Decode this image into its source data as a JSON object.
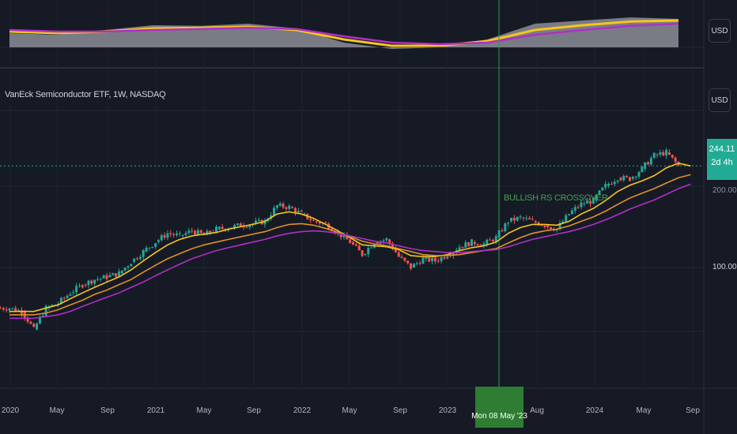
{
  "chart_data": [
    {
      "type": "area",
      "panel": "relative-strength",
      "axis_currency": "USD",
      "x": [
        "2020-01",
        "2020-05",
        "2020-09",
        "2021-01",
        "2021-05",
        "2021-09",
        "2022-01",
        "2022-05",
        "2022-09",
        "2023-01",
        "2023-05",
        "2023-08",
        "2024-01",
        "2024-05",
        "2024-08"
      ],
      "series": [
        {
          "color": "#b2b5be",
          "values": [
            0.45,
            0.4,
            0.55,
            0.7,
            0.68,
            0.75,
            0.6,
            0.15,
            -0.05,
            0.0,
            0.25,
            0.75,
            0.85,
            0.95,
            0.9
          ]
        },
        {
          "color": "#f7c51e",
          "values": [
            0.5,
            0.45,
            0.5,
            0.6,
            0.62,
            0.65,
            0.55,
            0.25,
            0.05,
            0.05,
            0.2,
            0.55,
            0.7,
            0.82,
            0.85
          ]
        },
        {
          "color": "#b02fc6",
          "values": [
            0.55,
            0.5,
            0.5,
            0.55,
            0.58,
            0.62,
            0.58,
            0.35,
            0.15,
            0.1,
            0.15,
            0.4,
            0.55,
            0.68,
            0.75
          ]
        }
      ]
    },
    {
      "type": "candlestick",
      "panel": "price",
      "title": "VanEck Semiconductor ETF, 1W, NASDAQ",
      "axis_currency": "USD",
      "x_ticks": [
        "2020",
        "May",
        "Sep",
        "2021",
        "May",
        "Sep",
        "2022",
        "May",
        "Sep",
        "2023",
        "Mon 08 May '23",
        "Aug",
        "2024",
        "May",
        "Sep"
      ],
      "y_ticks": [
        "100.00"
      ],
      "yaxis_partial_label": "200.00",
      "y_scale": "log",
      "last_price": "244.11",
      "countdown": "2d 4h",
      "annotation": "BULLISH RS CROSSOVER",
      "crosshair_date": "Mon 08 May '23",
      "closes": [
        {
          "date": "2020-01",
          "close": 70
        },
        {
          "date": "2020-02",
          "close": 68
        },
        {
          "date": "2020-03",
          "close": 58
        },
        {
          "date": "2020-04",
          "close": 70
        },
        {
          "date": "2020-05",
          "close": 73
        },
        {
          "date": "2020-06",
          "close": 80
        },
        {
          "date": "2020-07",
          "close": 86
        },
        {
          "date": "2020-08",
          "close": 90
        },
        {
          "date": "2020-09",
          "close": 92
        },
        {
          "date": "2020-10",
          "close": 95
        },
        {
          "date": "2020-11",
          "close": 105
        },
        {
          "date": "2020-12",
          "close": 115
        },
        {
          "date": "2021-01",
          "close": 125
        },
        {
          "date": "2021-02",
          "close": 135
        },
        {
          "date": "2021-03",
          "close": 132
        },
        {
          "date": "2021-04",
          "close": 138
        },
        {
          "date": "2021-05",
          "close": 133
        },
        {
          "date": "2021-06",
          "close": 140
        },
        {
          "date": "2021-07",
          "close": 142
        },
        {
          "date": "2021-08",
          "close": 145
        },
        {
          "date": "2021-09",
          "close": 147
        },
        {
          "date": "2021-10",
          "close": 150
        },
        {
          "date": "2021-11",
          "close": 172
        },
        {
          "date": "2021-12",
          "close": 170
        },
        {
          "date": "2022-01",
          "close": 160
        },
        {
          "date": "2022-02",
          "close": 150
        },
        {
          "date": "2022-03",
          "close": 147
        },
        {
          "date": "2022-04",
          "close": 135
        },
        {
          "date": "2022-05",
          "close": 125
        },
        {
          "date": "2022-06",
          "close": 112
        },
        {
          "date": "2022-07",
          "close": 125
        },
        {
          "date": "2022-08",
          "close": 128
        },
        {
          "date": "2022-09",
          "close": 110
        },
        {
          "date": "2022-10",
          "close": 100
        },
        {
          "date": "2022-11",
          "close": 108
        },
        {
          "date": "2022-12",
          "close": 106
        },
        {
          "date": "2023-01",
          "close": 112
        },
        {
          "date": "2023-02",
          "close": 120
        },
        {
          "date": "2023-03",
          "close": 125
        },
        {
          "date": "2023-04",
          "close": 123
        },
        {
          "date": "2023-05",
          "close": 130
        },
        {
          "date": "2023-06",
          "close": 150
        },
        {
          "date": "2023-07",
          "close": 155
        },
        {
          "date": "2023-08",
          "close": 150
        },
        {
          "date": "2023-09",
          "close": 145
        },
        {
          "date": "2023-10",
          "close": 140
        },
        {
          "date": "2023-11",
          "close": 160
        },
        {
          "date": "2023-12",
          "close": 175
        },
        {
          "date": "2024-01",
          "close": 180
        },
        {
          "date": "2024-02",
          "close": 205
        },
        {
          "date": "2024-03",
          "close": 220
        },
        {
          "date": "2024-04",
          "close": 218
        },
        {
          "date": "2024-05",
          "close": 238
        },
        {
          "date": "2024-06",
          "close": 268
        },
        {
          "date": "2024-07",
          "close": 275
        },
        {
          "date": "2024-08",
          "close": 244
        }
      ],
      "moving_averages": [
        {
          "color": "#f7c51e",
          "values": [
            68,
            68,
            68,
            70,
            72,
            76,
            80,
            84,
            88,
            92,
            98,
            106,
            114,
            122,
            128,
            132,
            134,
            136,
            140,
            143,
            146,
            150,
            160,
            163,
            160,
            154,
            146,
            138,
            130,
            122,
            121,
            120,
            117,
            111,
            110,
            110,
            112,
            116,
            119,
            121,
            125,
            135,
            142,
            146,
            146,
            145,
            150,
            160,
            168,
            180,
            195,
            206,
            214,
            224,
            240,
            250,
            244
          ]
        },
        {
          "color": "#e0902a",
          "values": [
            66,
            66,
            66,
            67,
            69,
            72,
            75,
            79,
            82,
            86,
            90,
            96,
            102,
            108,
            113,
            118,
            122,
            125,
            128,
            131,
            134,
            137,
            142,
            146,
            147,
            145,
            141,
            136,
            131,
            126,
            123,
            121,
            118,
            115,
            112,
            111,
            111,
            112,
            114,
            116,
            118,
            124,
            130,
            135,
            138,
            140,
            144,
            150,
            156,
            164,
            174,
            184,
            192,
            200,
            210,
            220,
            226
          ]
        },
        {
          "color": "#b02fc6",
          "values": [
            64,
            64,
            64,
            65,
            66,
            68,
            71,
            74,
            77,
            80,
            84,
            88,
            93,
            98,
            103,
            108,
            112,
            116,
            119,
            122,
            125,
            128,
            132,
            135,
            137,
            138,
            137,
            135,
            132,
            129,
            126,
            124,
            121,
            118,
            116,
            115,
            114,
            114,
            115,
            116,
            117,
            120,
            124,
            128,
            131,
            134,
            137,
            141,
            146,
            152,
            159,
            167,
            174,
            181,
            190,
            200,
            208
          ]
        }
      ]
    }
  ]
}
